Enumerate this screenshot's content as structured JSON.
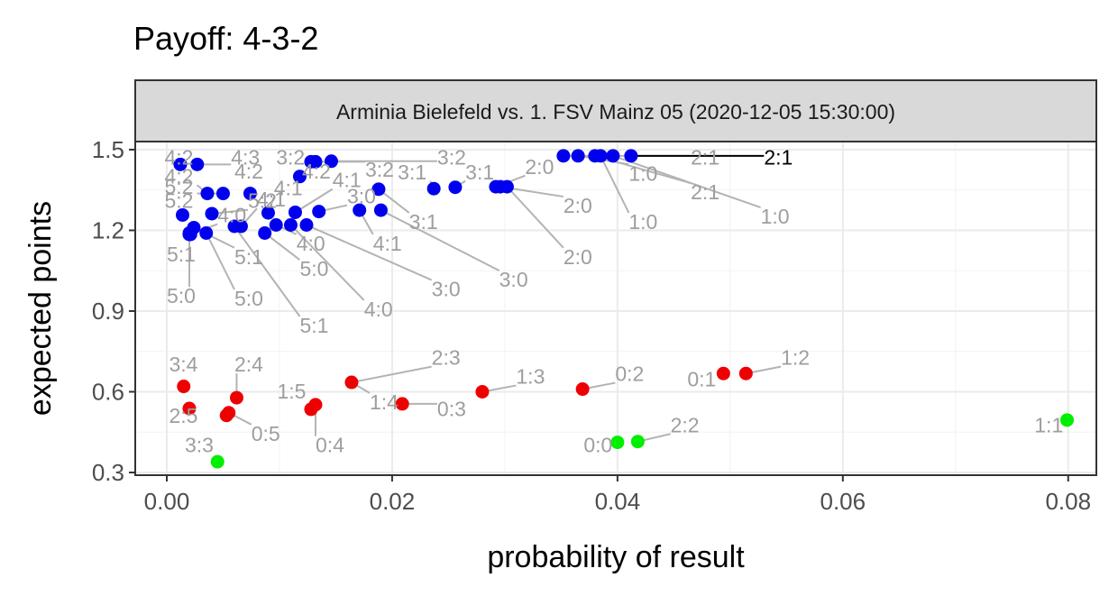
{
  "chart_data": {
    "type": "scatter",
    "title": "Payoff: 4-3-2",
    "facet_label": "Arminia Bielefeld vs. 1. FSV Mainz 05 (2020-12-05 15:30:00)",
    "xlabel": "probability of result",
    "ylabel": "expected points",
    "xlim": [
      -0.0028,
      0.0825
    ],
    "ylim": [
      0.29,
      1.53
    ],
    "x_ticks": [
      0.0,
      0.02,
      0.04,
      0.06,
      0.08
    ],
    "x_tick_labels": [
      "0.00",
      "0.02",
      "0.04",
      "0.06",
      "0.08"
    ],
    "y_ticks": [
      0.3,
      0.6,
      0.9,
      1.2,
      1.5
    ],
    "y_tick_labels": [
      "0.3",
      "0.6",
      "0.9",
      "1.2",
      "1.5"
    ],
    "grid": true,
    "colors": {
      "home_win": "#0000EE",
      "away_win": "#EE0000",
      "draw": "#00EE00",
      "label_gray": "#9E9E9E",
      "highlight": "#000000"
    },
    "points": [
      {
        "label": "4:2",
        "x": 0.0012,
        "y": 1.445,
        "group": "home_win",
        "lx": -0.0002,
        "ly": 1.445
      },
      {
        "label": "4:3",
        "x": 0.0027,
        "y": 1.445,
        "group": "home_win",
        "lx": 0.0057,
        "ly": 1.445
      },
      {
        "label": "3:2",
        "x": 0.0128,
        "y": 1.455,
        "group": "home_win",
        "lx": 0.0097,
        "ly": 1.445
      },
      {
        "label": "3:2",
        "x": 0.0132,
        "y": 1.455,
        "group": "home_win",
        "lx": 0.0176,
        "ly": 1.4
      },
      {
        "label": "3:2",
        "x": 0.0146,
        "y": 1.457,
        "group": "home_win",
        "lx": 0.024,
        "ly": 1.445
      },
      {
        "label": "4:2",
        "x": 0.0036,
        "y": 1.337,
        "group": "home_win",
        "lx": -0.0002,
        "ly": 1.375
      },
      {
        "label": "5:2",
        "x": 0.005,
        "y": 1.337,
        "group": "home_win",
        "lx": -0.0002,
        "ly": 1.335
      },
      {
        "label": "4:2",
        "x": 0.0074,
        "y": 1.337,
        "group": "home_win",
        "lx": 0.006,
        "ly": 1.393
      },
      {
        "label": "4:2",
        "x": 0.0118,
        "y": 1.4,
        "group": "home_win",
        "lx": 0.012,
        "ly": 1.393
      },
      {
        "label": "5:2",
        "x": 0.0014,
        "y": 1.257,
        "group": "home_win",
        "lx": -0.0002,
        "ly": 1.283
      },
      {
        "label": "5:2",
        "x": 0.004,
        "y": 1.262,
        "group": "home_win",
        "lx": 0.0072,
        "ly": 1.283
      },
      {
        "label": "4:1",
        "x": 0.009,
        "y": 1.265,
        "group": "home_win",
        "lx": 0.0095,
        "ly": 1.33
      },
      {
        "label": "4:1",
        "x": 0.0114,
        "y": 1.267,
        "group": "home_win",
        "lx": 0.0147,
        "ly": 1.36
      },
      {
        "label": "3:0",
        "x": 0.0135,
        "y": 1.27,
        "group": "home_win",
        "lx": 0.016,
        "ly": 1.3
      },
      {
        "label": "4:0",
        "x": 0.0021,
        "y": 1.185,
        "group": "home_win",
        "lx": 0.0045,
        "ly": 1.23
      },
      {
        "label": "4:1",
        "x": 0.0066,
        "y": 1.215,
        "group": "home_win",
        "lx": 0.008,
        "ly": 1.288
      },
      {
        "label": "3:1",
        "x": 0.0237,
        "y": 1.355,
        "group": "home_win",
        "lx": 0.0205,
        "ly": 1.39
      },
      {
        "label": "3:1",
        "x": 0.0256,
        "y": 1.36,
        "group": "home_win",
        "lx": 0.0265,
        "ly": 1.39
      },
      {
        "label": "2:0",
        "x": 0.0292,
        "y": 1.362,
        "group": "home_win",
        "lx": 0.0318,
        "ly": 1.41
      },
      {
        "label": "2:0",
        "x": 0.0296,
        "y": 1.362,
        "group": "home_win",
        "lx": 0.0352,
        "ly": 1.265
      },
      {
        "label": "2:0",
        "x": 0.0302,
        "y": 1.362,
        "group": "home_win",
        "lx": 0.0352,
        "ly": 1.075
      },
      {
        "label": "3:1",
        "x": 0.0188,
        "y": 1.353,
        "group": "home_win",
        "lx": 0.0215,
        "ly": 1.205
      },
      {
        "label": "4:1",
        "x": 0.0171,
        "y": 1.275,
        "group": "home_win",
        "lx": 0.0183,
        "ly": 1.125
      },
      {
        "label": "3:0",
        "x": 0.019,
        "y": 1.275,
        "group": "home_win",
        "lx": 0.0295,
        "ly": 0.99
      },
      {
        "label": "4:0",
        "x": 0.0097,
        "y": 1.22,
        "group": "home_win",
        "lx": 0.0115,
        "ly": 1.125
      },
      {
        "label": "3:0",
        "x": 0.0124,
        "y": 1.22,
        "group": "home_win",
        "lx": 0.0235,
        "ly": 0.955
      },
      {
        "label": "5:0",
        "x": 0.0087,
        "y": 1.19,
        "group": "home_win",
        "lx": 0.0118,
        "ly": 1.03
      },
      {
        "label": "4:0",
        "x": 0.011,
        "y": 1.22,
        "group": "home_win",
        "lx": 0.0175,
        "ly": 0.88
      },
      {
        "label": "5:1",
        "x": 0.0024,
        "y": 1.21,
        "group": "home_win",
        "lx": 0.006,
        "ly": 1.075
      },
      {
        "label": "5:1",
        "x": 0.002,
        "y": 1.19,
        "group": "home_win",
        "lx": 0.0,
        "ly": 1.085
      },
      {
        "label": "5:0",
        "x": 0.002,
        "y": 1.185,
        "group": "home_win",
        "lx": 0.0,
        "ly": 0.93
      },
      {
        "label": "5:0",
        "x": 0.0035,
        "y": 1.19,
        "group": "home_win",
        "lx": 0.006,
        "ly": 0.92
      },
      {
        "label": "5:1",
        "x": 0.006,
        "y": 1.215,
        "group": "home_win",
        "lx": 0.0118,
        "ly": 0.82
      },
      {
        "label": "2:1",
        "x": 0.0352,
        "y": 1.477,
        "group": "home_win",
        "lx": 0.0465,
        "ly": 1.445
      },
      {
        "label": "1:0",
        "x": 0.0365,
        "y": 1.477,
        "group": "home_win",
        "lx": 0.041,
        "ly": 1.385
      },
      {
        "label": "2:1",
        "x": 0.038,
        "y": 1.477,
        "group": "home_win",
        "lx": 0.0465,
        "ly": 1.315
      },
      {
        "label": "1:0",
        "x": 0.0385,
        "y": 1.477,
        "group": "home_win",
        "lx": 0.041,
        "ly": 1.205
      },
      {
        "label": "1:0",
        "x": 0.0396,
        "y": 1.477,
        "group": "home_win",
        "lx": 0.0527,
        "ly": 1.225
      },
      {
        "label": "2:1",
        "x": 0.0412,
        "y": 1.477,
        "group": "home_win",
        "lx": 0.053,
        "ly": 1.445,
        "highlight": true
      },
      {
        "label": "3:4",
        "x": 0.0015,
        "y": 0.62,
        "group": "away_win",
        "lx": 0.0002,
        "ly": 0.675
      },
      {
        "label": "2:4",
        "x": 0.0062,
        "y": 0.578,
        "group": "away_win",
        "lx": 0.006,
        "ly": 0.675
      },
      {
        "label": "2:5",
        "x": 0.002,
        "y": 0.538,
        "group": "away_win",
        "lx": 0.0002,
        "ly": 0.485
      },
      {
        "label": "0:5",
        "x": 0.0055,
        "y": 0.522,
        "group": "away_win",
        "lx": 0.0075,
        "ly": 0.418
      },
      {
        "label": "0:5",
        "x": 0.0053,
        "y": 0.512,
        "group": "away_win",
        "lx": 0.0075,
        "ly": 0.418,
        "hidden_label": true
      },
      {
        "label": "1:5",
        "x": 0.0128,
        "y": 0.535,
        "group": "away_win",
        "lx": 0.0098,
        "ly": 0.575
      },
      {
        "label": "0:4",
        "x": 0.0132,
        "y": 0.552,
        "group": "away_win",
        "lx": 0.0132,
        "ly": 0.375
      },
      {
        "label": "1:4",
        "x": 0.0164,
        "y": 0.635,
        "group": "away_win",
        "lx": 0.018,
        "ly": 0.535
      },
      {
        "label": "0:3",
        "x": 0.0209,
        "y": 0.555,
        "group": "away_win",
        "lx": 0.024,
        "ly": 0.51
      },
      {
        "label": "2:3",
        "x": 0.0164,
        "y": 0.635,
        "group": "away_win",
        "lx": 0.0235,
        "ly": 0.7,
        "hidden_point": true
      },
      {
        "label": "1:3",
        "x": 0.028,
        "y": 0.6,
        "group": "away_win",
        "lx": 0.031,
        "ly": 0.63
      },
      {
        "label": "0:2",
        "x": 0.0369,
        "y": 0.61,
        "group": "away_win",
        "lx": 0.0398,
        "ly": 0.64
      },
      {
        "label": "0:1",
        "x": 0.0494,
        "y": 0.668,
        "group": "away_win",
        "lx": 0.0462,
        "ly": 0.62
      },
      {
        "label": "1:2",
        "x": 0.0514,
        "y": 0.668,
        "group": "away_win",
        "lx": 0.0545,
        "ly": 0.7
      },
      {
        "label": "3:3",
        "x": 0.0045,
        "y": 0.34,
        "group": "draw",
        "lx": 0.0016,
        "ly": 0.375
      },
      {
        "label": "0:0",
        "x": 0.04,
        "y": 0.412,
        "group": "draw",
        "lx": 0.037,
        "ly": 0.375
      },
      {
        "label": "2:2",
        "x": 0.0418,
        "y": 0.415,
        "group": "draw",
        "lx": 0.0447,
        "ly": 0.45
      },
      {
        "label": "1:1",
        "x": 0.0799,
        "y": 0.495,
        "group": "draw",
        "lx": 0.077,
        "ly": 0.45
      }
    ]
  }
}
